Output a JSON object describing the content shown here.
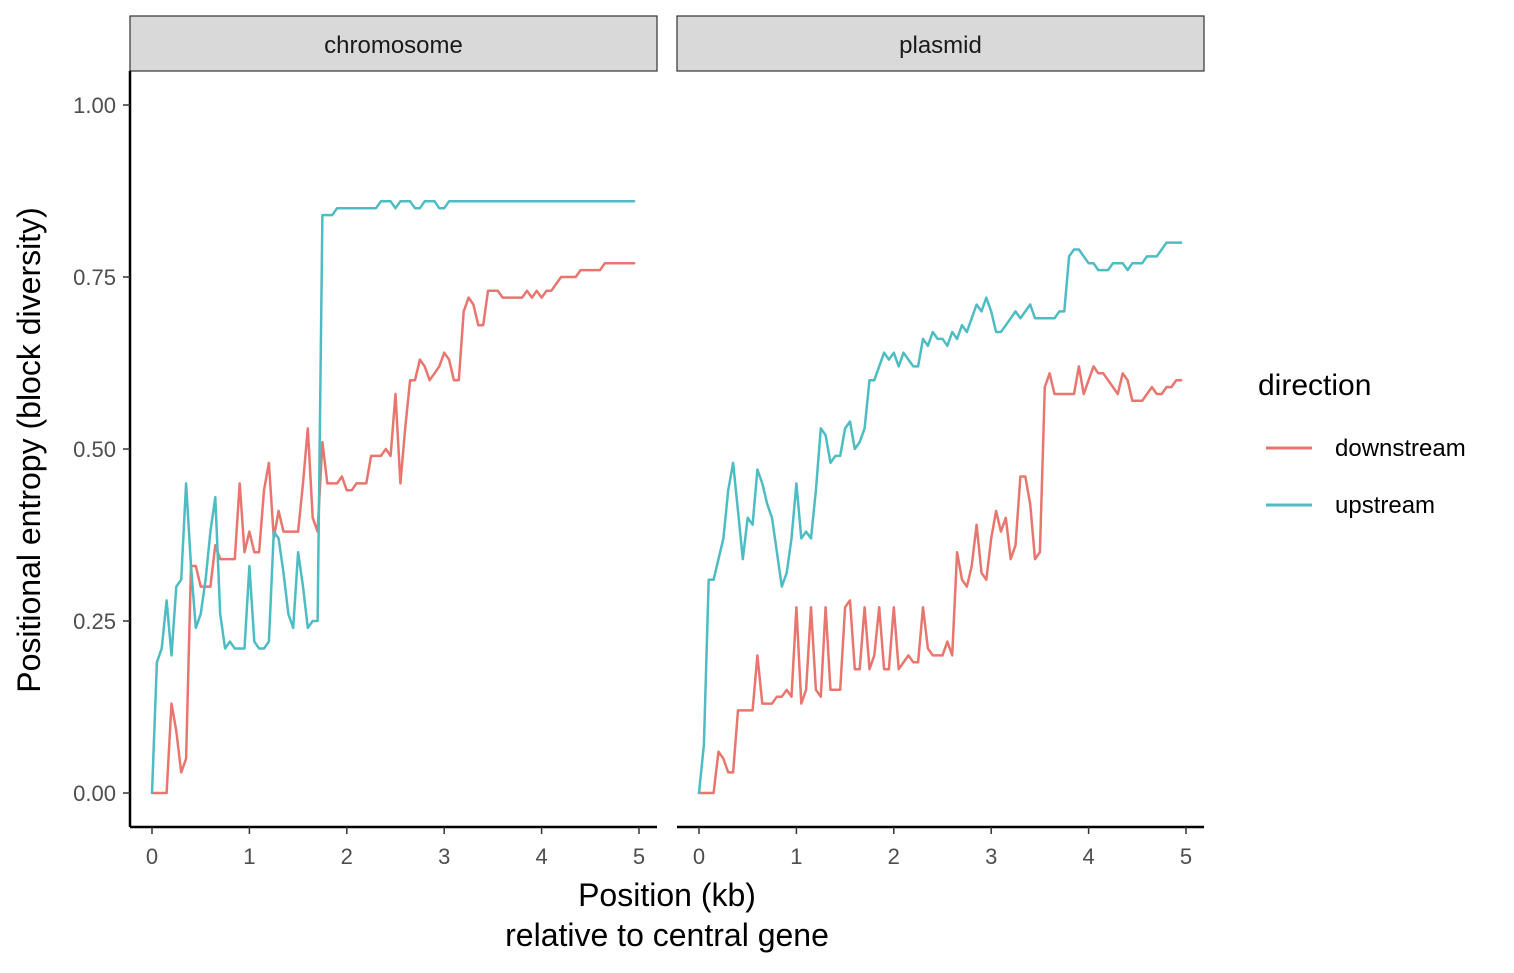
{
  "chart_data": {
    "type": "line",
    "xlabel": "Position (kb)",
    "xlabel_line2": "relative to central gene",
    "ylabel": "Positional entropy (block diversity)",
    "xlim": [
      0,
      5
    ],
    "ylim": [
      0,
      1
    ],
    "x_ticks": [
      "0",
      "1",
      "2",
      "3",
      "4",
      "5"
    ],
    "y_ticks": [
      "0.00",
      "0.25",
      "0.50",
      "0.75",
      "1.00"
    ],
    "grid": false,
    "legend": {
      "title": "direction",
      "position": "right",
      "entries": [
        {
          "name": "downstream",
          "color": "#E8766E"
        },
        {
          "name": "upstream",
          "color": "#4EBCC3"
        }
      ]
    },
    "facets": [
      {
        "label": "chromosome",
        "series": [
          {
            "name": "downstream",
            "color": "#E8766E",
            "x": [
              0,
              0.15,
              0.2,
              0.25,
              0.3,
              0.35,
              0.4,
              0.45,
              0.5,
              0.55,
              0.6,
              0.65,
              0.7,
              0.75,
              0.8,
              0.85,
              0.9,
              0.95,
              1.0,
              1.05,
              1.1,
              1.15,
              1.2,
              1.25,
              1.3,
              1.35,
              1.4,
              1.45,
              1.5,
              1.55,
              1.6,
              1.65,
              1.7,
              1.75,
              1.8,
              1.85,
              1.9,
              1.95,
              2.0,
              2.05,
              2.1,
              2.15,
              2.2,
              2.25,
              2.3,
              2.35,
              2.4,
              2.45,
              2.5,
              2.55,
              2.6,
              2.65,
              2.7,
              2.75,
              2.8,
              2.85,
              2.9,
              2.95,
              3.0,
              3.05,
              3.1,
              3.15,
              3.2,
              3.25,
              3.3,
              3.35,
              3.4,
              3.45,
              3.5,
              3.55,
              3.6,
              3.65,
              3.7,
              3.75,
              3.8,
              3.85,
              3.9,
              3.95,
              4.0,
              4.05,
              4.1,
              4.15,
              4.2,
              4.25,
              4.3,
              4.35,
              4.4,
              4.45,
              4.5,
              4.55,
              4.6,
              4.65,
              4.7,
              4.75,
              4.8,
              4.85,
              4.9,
              4.95
            ],
            "y": [
              0,
              0,
              0.13,
              0.09,
              0.03,
              0.05,
              0.33,
              0.33,
              0.3,
              0.3,
              0.3,
              0.36,
              0.34,
              0.34,
              0.34,
              0.34,
              0.45,
              0.35,
              0.38,
              0.35,
              0.35,
              0.44,
              0.48,
              0.37,
              0.41,
              0.38,
              0.38,
              0.38,
              0.38,
              0.45,
              0.53,
              0.4,
              0.38,
              0.51,
              0.45,
              0.45,
              0.45,
              0.46,
              0.44,
              0.44,
              0.45,
              0.45,
              0.45,
              0.49,
              0.49,
              0.49,
              0.5,
              0.49,
              0.58,
              0.45,
              0.53,
              0.6,
              0.6,
              0.63,
              0.62,
              0.6,
              0.61,
              0.62,
              0.64,
              0.63,
              0.6,
              0.6,
              0.7,
              0.72,
              0.71,
              0.68,
              0.68,
              0.73,
              0.73,
              0.73,
              0.72,
              0.72,
              0.72,
              0.72,
              0.72,
              0.73,
              0.72,
              0.73,
              0.72,
              0.73,
              0.73,
              0.74,
              0.75,
              0.75,
              0.75,
              0.75,
              0.76,
              0.76,
              0.76,
              0.76,
              0.76,
              0.77,
              0.77,
              0.77,
              0.77,
              0.77,
              0.77,
              0.77
            ]
          },
          {
            "name": "upstream",
            "color": "#4EBCC3",
            "x": [
              0,
              0.05,
              0.1,
              0.15,
              0.2,
              0.25,
              0.3,
              0.35,
              0.4,
              0.45,
              0.5,
              0.55,
              0.6,
              0.65,
              0.7,
              0.75,
              0.8,
              0.85,
              0.9,
              0.95,
              1.0,
              1.05,
              1.1,
              1.15,
              1.2,
              1.25,
              1.3,
              1.35,
              1.4,
              1.45,
              1.5,
              1.55,
              1.6,
              1.65,
              1.7,
              1.75,
              1.8,
              1.85,
              1.9,
              1.95,
              2.0,
              2.05,
              2.1,
              2.15,
              2.2,
              2.25,
              2.3,
              2.35,
              2.4,
              2.45,
              2.5,
              2.55,
              2.6,
              2.65,
              2.7,
              2.75,
              2.8,
              2.85,
              2.9,
              2.95,
              3.0,
              3.05,
              3.1,
              3.15,
              3.2,
              3.25,
              3.3,
              3.35,
              3.4,
              3.45,
              3.5,
              3.55,
              3.6,
              3.65,
              3.7,
              3.75,
              3.8,
              3.85,
              3.9,
              3.95,
              4.0,
              4.05,
              4.1,
              4.15,
              4.2,
              4.25,
              4.3,
              4.35,
              4.4,
              4.45,
              4.5,
              4.55,
              4.6,
              4.65,
              4.7,
              4.75,
              4.8,
              4.85,
              4.9,
              4.95
            ],
            "y": [
              0,
              0.19,
              0.21,
              0.28,
              0.2,
              0.3,
              0.31,
              0.45,
              0.33,
              0.24,
              0.26,
              0.31,
              0.38,
              0.43,
              0.26,
              0.21,
              0.22,
              0.21,
              0.21,
              0.21,
              0.33,
              0.22,
              0.21,
              0.21,
              0.22,
              0.38,
              0.37,
              0.32,
              0.26,
              0.24,
              0.35,
              0.3,
              0.24,
              0.25,
              0.25,
              0.84,
              0.84,
              0.84,
              0.85,
              0.85,
              0.85,
              0.85,
              0.85,
              0.85,
              0.85,
              0.85,
              0.85,
              0.86,
              0.86,
              0.86,
              0.85,
              0.86,
              0.86,
              0.86,
              0.85,
              0.85,
              0.86,
              0.86,
              0.86,
              0.85,
              0.85,
              0.86,
              0.86,
              0.86,
              0.86,
              0.86,
              0.86,
              0.86,
              0.86,
              0.86,
              0.86,
              0.86,
              0.86,
              0.86,
              0.86,
              0.86,
              0.86,
              0.86,
              0.86,
              0.86,
              0.86,
              0.86,
              0.86,
              0.86,
              0.86,
              0.86,
              0.86,
              0.86,
              0.86,
              0.86,
              0.86,
              0.86,
              0.86,
              0.86,
              0.86,
              0.86,
              0.86,
              0.86,
              0.86,
              0.86
            ]
          }
        ]
      },
      {
        "label": "plasmid",
        "series": [
          {
            "name": "downstream",
            "color": "#E8766E",
            "x": [
              0,
              0.05,
              0.1,
              0.15,
              0.2,
              0.25,
              0.3,
              0.35,
              0.4,
              0.45,
              0.5,
              0.55,
              0.6,
              0.65,
              0.7,
              0.75,
              0.8,
              0.85,
              0.9,
              0.95,
              1.0,
              1.05,
              1.1,
              1.15,
              1.2,
              1.25,
              1.3,
              1.35,
              1.4,
              1.45,
              1.5,
              1.55,
              1.6,
              1.65,
              1.7,
              1.75,
              1.8,
              1.85,
              1.9,
              1.95,
              2.0,
              2.05,
              2.1,
              2.15,
              2.2,
              2.25,
              2.3,
              2.35,
              2.4,
              2.45,
              2.5,
              2.55,
              2.6,
              2.65,
              2.7,
              2.75,
              2.8,
              2.85,
              2.9,
              2.95,
              3.0,
              3.05,
              3.1,
              3.15,
              3.2,
              3.25,
              3.3,
              3.35,
              3.4,
              3.45,
              3.5,
              3.55,
              3.6,
              3.65,
              3.7,
              3.75,
              3.8,
              3.85,
              3.9,
              3.95,
              4.0,
              4.05,
              4.1,
              4.15,
              4.2,
              4.25,
              4.3,
              4.35,
              4.4,
              4.45,
              4.5,
              4.55,
              4.6,
              4.65,
              4.7,
              4.75,
              4.8,
              4.85,
              4.9,
              4.95
            ],
            "y": [
              0,
              0,
              0,
              0,
              0.06,
              0.05,
              0.03,
              0.03,
              0.12,
              0.12,
              0.12,
              0.12,
              0.2,
              0.13,
              0.13,
              0.13,
              0.14,
              0.14,
              0.15,
              0.14,
              0.27,
              0.13,
              0.15,
              0.27,
              0.15,
              0.14,
              0.27,
              0.15,
              0.15,
              0.15,
              0.27,
              0.28,
              0.18,
              0.18,
              0.27,
              0.18,
              0.2,
              0.27,
              0.18,
              0.18,
              0.27,
              0.18,
              0.19,
              0.2,
              0.19,
              0.19,
              0.27,
              0.21,
              0.2,
              0.2,
              0.2,
              0.22,
              0.2,
              0.35,
              0.31,
              0.3,
              0.33,
              0.39,
              0.32,
              0.31,
              0.37,
              0.41,
              0.38,
              0.4,
              0.34,
              0.36,
              0.46,
              0.46,
              0.42,
              0.34,
              0.35,
              0.59,
              0.61,
              0.58,
              0.58,
              0.58,
              0.58,
              0.58,
              0.62,
              0.58,
              0.6,
              0.62,
              0.61,
              0.61,
              0.6,
              0.59,
              0.58,
              0.61,
              0.6,
              0.57,
              0.57,
              0.57,
              0.58,
              0.59,
              0.58,
              0.58,
              0.59,
              0.59,
              0.6,
              0.6
            ]
          },
          {
            "name": "upstream",
            "color": "#4EBCC3",
            "x": [
              0,
              0.05,
              0.1,
              0.15,
              0.2,
              0.25,
              0.3,
              0.35,
              0.4,
              0.45,
              0.5,
              0.55,
              0.6,
              0.65,
              0.7,
              0.75,
              0.8,
              0.85,
              0.9,
              0.95,
              1.0,
              1.05,
              1.1,
              1.15,
              1.2,
              1.25,
              1.3,
              1.35,
              1.4,
              1.45,
              1.5,
              1.55,
              1.6,
              1.65,
              1.7,
              1.75,
              1.8,
              1.85,
              1.9,
              1.95,
              2.0,
              2.05,
              2.1,
              2.15,
              2.2,
              2.25,
              2.3,
              2.35,
              2.4,
              2.45,
              2.5,
              2.55,
              2.6,
              2.65,
              2.7,
              2.75,
              2.8,
              2.85,
              2.9,
              2.95,
              3.0,
              3.05,
              3.1,
              3.15,
              3.2,
              3.25,
              3.3,
              3.35,
              3.4,
              3.45,
              3.5,
              3.55,
              3.6,
              3.65,
              3.7,
              3.75,
              3.8,
              3.85,
              3.9,
              3.95,
              4.0,
              4.05,
              4.1,
              4.15,
              4.2,
              4.25,
              4.3,
              4.35,
              4.4,
              4.45,
              4.5,
              4.55,
              4.6,
              4.65,
              4.7,
              4.75,
              4.8,
              4.85,
              4.9,
              4.95
            ],
            "y": [
              0,
              0.07,
              0.31,
              0.31,
              0.34,
              0.37,
              0.44,
              0.48,
              0.41,
              0.34,
              0.4,
              0.39,
              0.47,
              0.45,
              0.42,
              0.4,
              0.35,
              0.3,
              0.32,
              0.37,
              0.45,
              0.37,
              0.38,
              0.37,
              0.44,
              0.53,
              0.52,
              0.48,
              0.49,
              0.49,
              0.53,
              0.54,
              0.5,
              0.51,
              0.53,
              0.6,
              0.6,
              0.62,
              0.64,
              0.63,
              0.64,
              0.62,
              0.64,
              0.63,
              0.62,
              0.62,
              0.66,
              0.65,
              0.67,
              0.66,
              0.66,
              0.65,
              0.67,
              0.66,
              0.68,
              0.67,
              0.69,
              0.71,
              0.7,
              0.72,
              0.7,
              0.67,
              0.67,
              0.68,
              0.69,
              0.7,
              0.69,
              0.7,
              0.71,
              0.69,
              0.69,
              0.69,
              0.69,
              0.69,
              0.7,
              0.7,
              0.78,
              0.79,
              0.79,
              0.78,
              0.77,
              0.77,
              0.76,
              0.76,
              0.76,
              0.77,
              0.77,
              0.77,
              0.76,
              0.77,
              0.77,
              0.77,
              0.78,
              0.78,
              0.78,
              0.79,
              0.8,
              0.8,
              0.8,
              0.8
            ]
          }
        ]
      }
    ]
  }
}
